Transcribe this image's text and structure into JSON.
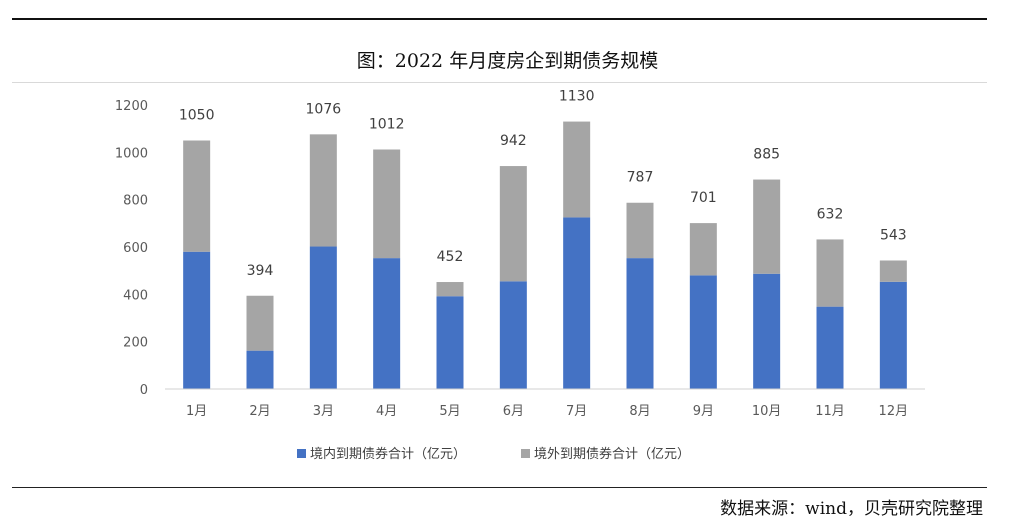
{
  "page": {
    "title": "图：2022 年月度房企到期债务规模",
    "source": "数据来源：wind，贝壳研究院整理"
  },
  "chart_data": {
    "type": "bar",
    "stacked": true,
    "categories": [
      "1月",
      "2月",
      "3月",
      "4月",
      "5月",
      "6月",
      "7月",
      "8月",
      "9月",
      "10月",
      "11月",
      "12月"
    ],
    "series": [
      {
        "name": "境内到期债券合计（亿元）",
        "color": "#4472c4",
        "values": [
          580,
          162,
          602,
          553,
          392,
          455,
          725,
          553,
          480,
          487,
          348,
          453
        ]
      },
      {
        "name": "境外到期债券合计（亿元）",
        "color": "#a5a5a5",
        "values": [
          470,
          232,
          474,
          459,
          60,
          487,
          405,
          234,
          221,
          398,
          284,
          90
        ]
      }
    ],
    "totals": [
      1050,
      394,
      1076,
      1012,
      452,
      942,
      1130,
      787,
      701,
      885,
      632,
      543
    ],
    "yticks": [
      0,
      200,
      400,
      600,
      800,
      1000,
      1200
    ],
    "ylim": [
      0,
      1200
    ],
    "legend_position": "bottom",
    "grid": false
  }
}
